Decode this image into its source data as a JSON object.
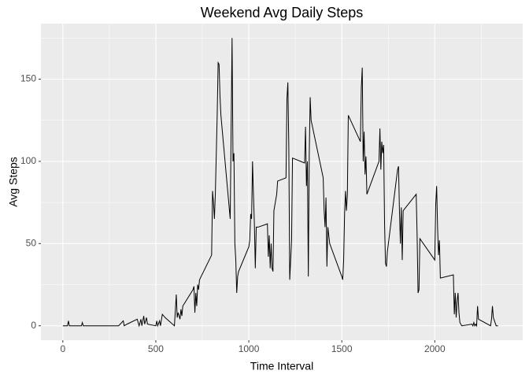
{
  "chart_data": {
    "type": "line",
    "title": "Weekend Avg Daily Steps",
    "x_label": "Time Interval",
    "y_label": "Avg Steps",
    "color": "#000000",
    "grid": true,
    "xlim": [
      -117.75,
      2472.75
    ],
    "ylim": [
      -8.76,
      183.76
    ],
    "xticks": [
      0,
      500,
      1000,
      1500,
      2000
    ],
    "yticks": [
      0,
      50,
      100,
      150
    ],
    "x_minor_ticks": [
      250,
      750,
      1250,
      1750,
      2250
    ],
    "y_minor_ticks": [
      25,
      75,
      125,
      175
    ],
    "x": [
      0,
      25,
      30,
      35,
      50,
      100,
      105,
      110,
      130,
      300,
      325,
      330,
      345,
      400,
      410,
      420,
      425,
      435,
      440,
      450,
      455,
      500,
      505,
      510,
      520,
      525,
      535,
      550,
      600,
      610,
      615,
      620,
      630,
      635,
      640,
      645,
      700,
      705,
      710,
      715,
      720,
      725,
      730,
      735,
      800,
      805,
      810,
      815,
      820,
      830,
      835,
      840,
      845,
      850,
      900,
      905,
      910,
      915,
      920,
      925,
      930,
      935,
      940,
      945,
      1000,
      1005,
      1010,
      1015,
      1020,
      1025,
      1030,
      1035,
      1040,
      1050,
      1100,
      1105,
      1110,
      1115,
      1120,
      1125,
      1130,
      1135,
      1150,
      1155,
      1200,
      1205,
      1210,
      1215,
      1220,
      1225,
      1230,
      1235,
      1300,
      1305,
      1310,
      1315,
      1320,
      1325,
      1330,
      1335,
      1400,
      1405,
      1410,
      1415,
      1420,
      1425,
      1430,
      1435,
      1500,
      1505,
      1510,
      1515,
      1520,
      1525,
      1530,
      1535,
      1600,
      1605,
      1610,
      1615,
      1620,
      1625,
      1630,
      1635,
      1700,
      1705,
      1710,
      1715,
      1720,
      1725,
      1730,
      1735,
      1740,
      1745,
      1800,
      1805,
      1810,
      1815,
      1820,
      1825,
      1830,
      1900,
      1905,
      1910,
      1915,
      1920,
      2000,
      2005,
      2010,
      2015,
      2020,
      2025,
      2030,
      2100,
      2105,
      2110,
      2115,
      2120,
      2125,
      2130,
      2135,
      2145,
      2200,
      2205,
      2210,
      2215,
      2220,
      2225,
      2230,
      2235,
      2300,
      2305,
      2310,
      2315,
      2330,
      2340
    ],
    "values": [
      0,
      0,
      3,
      0,
      0,
      0,
      2,
      0,
      0,
      0,
      3,
      0,
      1,
      4,
      0,
      4,
      0,
      6,
      1,
      5,
      1,
      0,
      3,
      0,
      3,
      0,
      7,
      5,
      0,
      19,
      5,
      8,
      4,
      10,
      6,
      12,
      22,
      24,
      8,
      20,
      12,
      25,
      22,
      28,
      43,
      82,
      75,
      65,
      80,
      128,
      160,
      159,
      140,
      128,
      65,
      120,
      175,
      100,
      105,
      50,
      40,
      20,
      30,
      33,
      48,
      52,
      68,
      65,
      100,
      80,
      62,
      35,
      60,
      60,
      62,
      42,
      55,
      35,
      50,
      35,
      33,
      70,
      80,
      88,
      90,
      138,
      148,
      110,
      28,
      40,
      52,
      102,
      99,
      121,
      85,
      100,
      30,
      104,
      139,
      125,
      90,
      70,
      60,
      78,
      36,
      60,
      55,
      50,
      30,
      28,
      40,
      68,
      82,
      70,
      80,
      128,
      112,
      145,
      157,
      100,
      118,
      92,
      103,
      80,
      100,
      120,
      95,
      112,
      105,
      110,
      62,
      38,
      36,
      45,
      95,
      97,
      70,
      50,
      72,
      40,
      70,
      80,
      55,
      20,
      22,
      53,
      40,
      74,
      85,
      60,
      43,
      52,
      29,
      31,
      7,
      20,
      5,
      15,
      20,
      8,
      2,
      0,
      1,
      0,
      2,
      0,
      1,
      0,
      12,
      4,
      0,
      4,
      12,
      5,
      0,
      0
    ]
  }
}
